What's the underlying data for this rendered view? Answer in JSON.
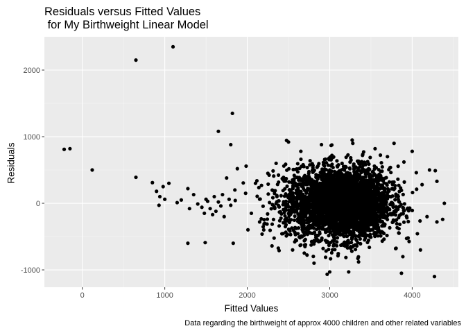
{
  "chart_data": {
    "type": "scatter",
    "title": "Residuals versus Fitted Values\n for My Birthweight Linear Model",
    "xlabel": "Fitted Values",
    "ylabel": "Residuals",
    "caption": "Data regarding the birthweight of approx 4000 children and other related variables",
    "xlim": [
      -460,
      4560
    ],
    "ylim": [
      -1260,
      2500
    ],
    "x_ticks": [
      0,
      1000,
      2000,
      3000,
      4000
    ],
    "x_tick_labels": [
      "0",
      "1000",
      "2000",
      "3000",
      "4000"
    ],
    "y_ticks": [
      -1000,
      0,
      1000,
      2000
    ],
    "y_tick_labels": [
      "-1000",
      "0",
      "1000",
      "2000"
    ],
    "grid": true,
    "background_color": "#EBEBEB",
    "point_color": "#000000",
    "cluster": {
      "center_x": 3170,
      "center_y": 0,
      "sd_x": 280,
      "sd_y": 265,
      "n": 3600
    },
    "points": [
      {
        "x": -220,
        "y": 810
      },
      {
        "x": -150,
        "y": 820
      },
      {
        "x": 120,
        "y": 500
      },
      {
        "x": 650,
        "y": 2150
      },
      {
        "x": 1100,
        "y": 2350
      },
      {
        "x": 650,
        "y": 390
      },
      {
        "x": 1650,
        "y": 1080
      },
      {
        "x": 1820,
        "y": 1350
      },
      {
        "x": 1800,
        "y": 880
      },
      {
        "x": 850,
        "y": 310
      },
      {
        "x": 900,
        "y": 180
      },
      {
        "x": 940,
        "y": 100
      },
      {
        "x": 980,
        "y": 250
      },
      {
        "x": 1000,
        "y": 60
      },
      {
        "x": 1050,
        "y": 300
      },
      {
        "x": 930,
        "y": -30
      },
      {
        "x": 1150,
        "y": 10
      },
      {
        "x": 1200,
        "y": 50
      },
      {
        "x": 1280,
        "y": 220
      },
      {
        "x": 1300,
        "y": -80
      },
      {
        "x": 1350,
        "y": 130
      },
      {
        "x": 1400,
        "y": -10
      },
      {
        "x": 1450,
        "y": -60
      },
      {
        "x": 1480,
        "y": -150
      },
      {
        "x": 1500,
        "y": 60
      },
      {
        "x": 1520,
        "y": 30
      },
      {
        "x": 1550,
        "y": -80
      },
      {
        "x": 1580,
        "y": -170
      },
      {
        "x": 1600,
        "y": 100
      },
      {
        "x": 1620,
        "y": -120
      },
      {
        "x": 1650,
        "y": 20
      },
      {
        "x": 1680,
        "y": -40
      },
      {
        "x": 1700,
        "y": 130
      },
      {
        "x": 1720,
        "y": -200
      },
      {
        "x": 1750,
        "y": 380
      },
      {
        "x": 1780,
        "y": 60
      },
      {
        "x": 1800,
        "y": -30
      },
      {
        "x": 1850,
        "y": 200
      },
      {
        "x": 1880,
        "y": 520
      },
      {
        "x": 1280,
        "y": -600
      },
      {
        "x": 1490,
        "y": -590
      },
      {
        "x": 1830,
        "y": -600
      },
      {
        "x": 2500,
        "y": 920
      },
      {
        "x": 2900,
        "y": 880
      },
      {
        "x": 3280,
        "y": 900
      },
      {
        "x": 3780,
        "y": 900
      },
      {
        "x": 4000,
        "y": 780
      },
      {
        "x": 3230,
        "y": -1030
      },
      {
        "x": 3000,
        "y": -1030
      },
      {
        "x": 3350,
        "y": -880
      },
      {
        "x": 2950,
        "y": -810
      },
      {
        "x": 3870,
        "y": -1050
      },
      {
        "x": 4270,
        "y": -1100
      },
      {
        "x": 4100,
        "y": -700
      },
      {
        "x": 4210,
        "y": 500
      },
      {
        "x": 4280,
        "y": 490
      },
      {
        "x": 4300,
        "y": 330
      },
      {
        "x": 4390,
        "y": 0
      },
      {
        "x": 4300,
        "y": -280
      },
      {
        "x": 4180,
        "y": -200
      },
      {
        "x": 4120,
        "y": 280
      },
      {
        "x": 4050,
        "y": 460
      },
      {
        "x": 2300,
        "y": -640
      },
      {
        "x": 2550,
        "y": -700
      },
      {
        "x": 2700,
        "y": -650
      },
      {
        "x": 2200,
        "y": -400
      },
      {
        "x": 2150,
        "y": -280
      },
      {
        "x": 2050,
        "y": -150
      },
      {
        "x": 1980,
        "y": 150
      },
      {
        "x": 2100,
        "y": 300
      },
      {
        "x": 2250,
        "y": 450
      },
      {
        "x": 2350,
        "y": 600
      },
      {
        "x": 2650,
        "y": 780
      },
      {
        "x": 3550,
        "y": 820
      },
      {
        "x": 3700,
        "y": 700
      },
      {
        "x": 3950,
        "y": -520
      },
      {
        "x": 3800,
        "y": -680
      },
      {
        "x": 3900,
        "y": 620
      }
    ]
  }
}
